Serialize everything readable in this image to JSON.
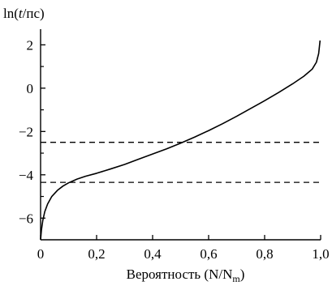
{
  "chart_data": {
    "type": "line",
    "ylabel_prefix": "ln(",
    "ylabel_var": "t",
    "ylabel_suffix": "/пс)",
    "xlabel_main": "Вероятность (N/N",
    "xlabel_sub": "m",
    "xlabel_close": ")",
    "xlim": [
      0,
      1.0
    ],
    "ylim": [
      -7,
      2.5
    ],
    "x_ticks": [
      0,
      0.2,
      0.4,
      0.6,
      0.8,
      1.0
    ],
    "x_tick_labels": [
      "0",
      "0,2",
      "0,4",
      "0,6",
      "0,8",
      "1,0"
    ],
    "y_ticks": [
      2,
      0,
      -2,
      -4,
      -6
    ],
    "y_tick_labels": [
      "2",
      "0",
      "−2",
      "−4",
      "−6"
    ],
    "y_minor_ticks": [
      1,
      -1,
      -3,
      -5
    ],
    "grid": false,
    "series": [
      {
        "style": "solid",
        "x": [
          0.0,
          0.003,
          0.008,
          0.015,
          0.025,
          0.04,
          0.06,
          0.08,
          0.1,
          0.13,
          0.16,
          0.2,
          0.25,
          0.3,
          0.35,
          0.4,
          0.45,
          0.5,
          0.55,
          0.6,
          0.65,
          0.7,
          0.75,
          0.8,
          0.85,
          0.9,
          0.94,
          0.97,
          0.985,
          0.993,
          0.998
        ],
        "y": [
          -7.0,
          -6.55,
          -6.1,
          -5.7,
          -5.35,
          -5.0,
          -4.72,
          -4.52,
          -4.37,
          -4.2,
          -4.07,
          -3.93,
          -3.73,
          -3.52,
          -3.28,
          -3.04,
          -2.8,
          -2.54,
          -2.26,
          -1.96,
          -1.64,
          -1.3,
          -0.94,
          -0.58,
          -0.2,
          0.2,
          0.55,
          0.88,
          1.2,
          1.6,
          2.2
        ]
      }
    ],
    "reference_lines": [
      {
        "style": "dashed",
        "y": -2.5
      },
      {
        "style": "dashed",
        "y": -4.35
      }
    ]
  }
}
